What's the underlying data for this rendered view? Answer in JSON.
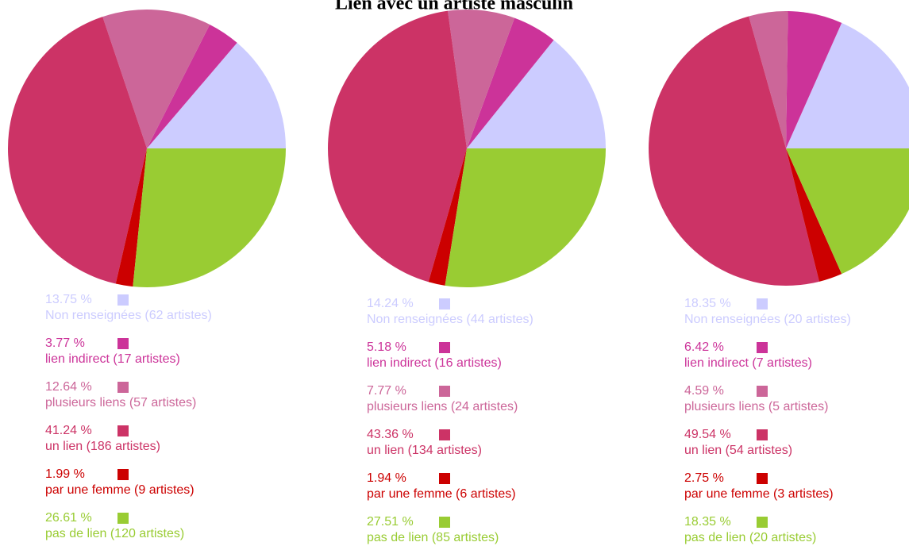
{
  "title": "Lien avec un artiste masculin",
  "chart_data": [
    {
      "type": "pie",
      "categories": [
        "Non renseignées (62 artistes)",
        "lien indirect (17 artistes)",
        "plusieurs liens (57 artistes)",
        "un lien (186 artistes)",
        "par une femme (9 artistes)",
        "pas de lien (120 artistes)"
      ],
      "values": [
        13.75,
        3.77,
        12.64,
        41.24,
        1.99,
        26.61
      ],
      "value_labels": [
        "13.75 %",
        "3.77 %",
        "12.64 %",
        "41.24 %",
        "1.99 %",
        "26.61 %"
      ],
      "colors": [
        "#ccccff",
        "#cc3399",
        "#cc6699",
        "#cc3366",
        "#cc0000",
        "#99cc33"
      ]
    },
    {
      "type": "pie",
      "categories": [
        "Non renseignées (44 artistes)",
        "lien indirect (16 artistes)",
        "plusieurs liens (24 artistes)",
        "un lien (134 artistes)",
        "par une femme (6 artistes)",
        "pas de lien (85 artistes)"
      ],
      "values": [
        14.24,
        5.18,
        7.77,
        43.36,
        1.94,
        27.51
      ],
      "value_labels": [
        "14.24 %",
        "5.18 %",
        "7.77 %",
        "43.36 %",
        "1.94 %",
        "27.51 %"
      ],
      "colors": [
        "#ccccff",
        "#cc3399",
        "#cc6699",
        "#cc3366",
        "#cc0000",
        "#99cc33"
      ]
    },
    {
      "type": "pie",
      "categories": [
        "Non renseignées (20 artistes)",
        "lien indirect (7 artistes)",
        "plusieurs liens (5 artistes)",
        "un lien (54 artistes)",
        "par une femme (3 artistes)",
        "pas de lien (20 artistes)"
      ],
      "values": [
        18.35,
        6.42,
        4.59,
        49.54,
        2.75,
        18.35
      ],
      "value_labels": [
        "18.35 %",
        "6.42 %",
        "4.59 %",
        "49.54 %",
        "2.75 %",
        "18.35 %"
      ],
      "colors": [
        "#ccccff",
        "#cc3399",
        "#cc6699",
        "#cc3366",
        "#cc0000",
        "#99cc33"
      ]
    }
  ]
}
